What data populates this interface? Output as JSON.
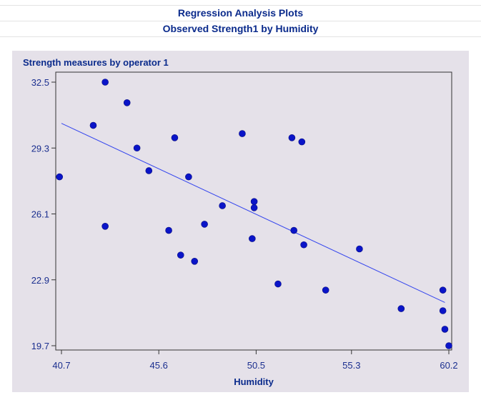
{
  "header": {
    "title": "Regression Analysis Plots",
    "subtitle": "Observed Strength1 by Humidity"
  },
  "colors": {
    "title_text": "#0b2b8c",
    "panel_background": "#e5e1e9",
    "plot_background": "#e5e1e9",
    "points": "#0a14c8",
    "regression_line": "#3344ee",
    "axis": "#333333"
  },
  "chart_data": {
    "type": "scatter",
    "title": "Strength measures by operator 1",
    "xlabel": "Humidity",
    "ylabel": "",
    "xlim": [
      40.7,
      60.2
    ],
    "ylim": [
      19.7,
      32.5
    ],
    "x_ticks": [
      "40.7",
      "45.6",
      "50.5",
      "55.3",
      "60.2"
    ],
    "y_ticks": [
      "19.7",
      "22.9",
      "26.1",
      "29.3",
      "32.5"
    ],
    "grid": false,
    "legend": "none",
    "series": [
      {
        "points": [
          {
            "x": 40.6,
            "y": 27.9
          },
          {
            "x": 42.3,
            "y": 30.4
          },
          {
            "x": 42.9,
            "y": 32.5
          },
          {
            "x": 42.9,
            "y": 25.5
          },
          {
            "x": 44.0,
            "y": 31.5
          },
          {
            "x": 44.5,
            "y": 29.3
          },
          {
            "x": 45.1,
            "y": 28.2
          },
          {
            "x": 46.1,
            "y": 25.3
          },
          {
            "x": 46.4,
            "y": 29.8
          },
          {
            "x": 46.7,
            "y": 24.1
          },
          {
            "x": 47.1,
            "y": 27.9
          },
          {
            "x": 47.4,
            "y": 23.8
          },
          {
            "x": 47.9,
            "y": 25.6
          },
          {
            "x": 48.8,
            "y": 26.5
          },
          {
            "x": 49.8,
            "y": 30.0
          },
          {
            "x": 50.3,
            "y": 24.9
          },
          {
            "x": 50.4,
            "y": 26.7
          },
          {
            "x": 50.4,
            "y": 26.4
          },
          {
            "x": 51.6,
            "y": 22.7
          },
          {
            "x": 52.3,
            "y": 29.8
          },
          {
            "x": 52.4,
            "y": 25.3
          },
          {
            "x": 52.8,
            "y": 29.6
          },
          {
            "x": 52.9,
            "y": 24.6
          },
          {
            "x": 54.0,
            "y": 22.4
          },
          {
            "x": 55.7,
            "y": 24.4
          },
          {
            "x": 57.8,
            "y": 21.5
          },
          {
            "x": 59.9,
            "y": 22.4
          },
          {
            "x": 59.9,
            "y": 21.4
          },
          {
            "x": 60.0,
            "y": 20.5
          },
          {
            "x": 60.2,
            "y": 19.7
          }
        ]
      }
    ],
    "fit_line": {
      "x": [
        40.7,
        60.0
      ],
      "y": [
        30.5,
        21.8
      ]
    }
  }
}
